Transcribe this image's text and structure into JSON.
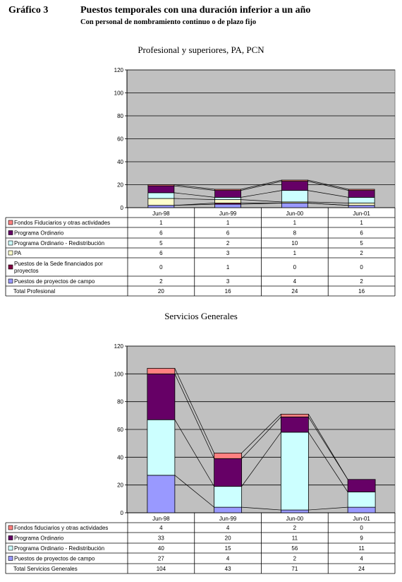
{
  "header": {
    "label": "Gráfico 3",
    "title": "Puestos temporales con una duración inferior a un año",
    "subtitle": "Con personal de nombramiento continuo o de plazo fijo"
  },
  "chart_data": [
    {
      "type": "bar",
      "stacked": true,
      "title": "Profesional y superiores, PA, PCN",
      "categories": [
        "Jun-98",
        "Jun-99",
        "Jun-00",
        "Jun-01"
      ],
      "ylim": [
        0,
        120
      ],
      "yticks": [
        0,
        20,
        40,
        60,
        80,
        100,
        120
      ],
      "grid": true,
      "legend": "table-below",
      "series": [
        {
          "name": "Fondos Fiduciarios y otras actividades",
          "color": "#ff8080",
          "values": [
            1,
            1,
            1,
            1
          ]
        },
        {
          "name": "Programa Ordinario",
          "color": "#660066",
          "values": [
            6,
            6,
            8,
            6
          ]
        },
        {
          "name": "Programa Ordinario - Redistribución",
          "color": "#ccffff",
          "values": [
            5,
            2,
            10,
            5
          ]
        },
        {
          "name": "PA",
          "color": "#ffffcc",
          "values": [
            6,
            3,
            1,
            2
          ]
        },
        {
          "name": "Puestos de la Sede financiados por proyectos",
          "color": "#800040",
          "values": [
            0,
            1,
            0,
            0
          ]
        },
        {
          "name": "Puestos de proyectos de campo",
          "color": "#9999ff",
          "values": [
            2,
            3,
            4,
            2
          ]
        }
      ],
      "total": {
        "name": "Total Profesional",
        "values": [
          20,
          16,
          24,
          16
        ]
      }
    },
    {
      "type": "bar",
      "stacked": true,
      "title": "Servicios Generales",
      "categories": [
        "Jun-98",
        "Jun-99",
        "Jun-00",
        "Jun-01"
      ],
      "ylim": [
        0,
        120
      ],
      "yticks": [
        0,
        20,
        40,
        60,
        80,
        100,
        120
      ],
      "grid": true,
      "legend": "table-below",
      "series": [
        {
          "name": "Fondos fiduciarios y otras actividades",
          "color": "#ff8080",
          "values": [
            4,
            4,
            2,
            0
          ]
        },
        {
          "name": "Programa Ordinario",
          "color": "#660066",
          "values": [
            33,
            20,
            11,
            9
          ]
        },
        {
          "name": "Programa Ordinario - Redistribución",
          "color": "#ccffff",
          "values": [
            40,
            15,
            56,
            11
          ]
        },
        {
          "name": "Puestos de proyectos de campo",
          "color": "#9999ff",
          "values": [
            27,
            4,
            2,
            4
          ]
        }
      ],
      "total": {
        "name": "Total Servicios Generales",
        "values": [
          104,
          43,
          71,
          24
        ]
      }
    }
  ]
}
